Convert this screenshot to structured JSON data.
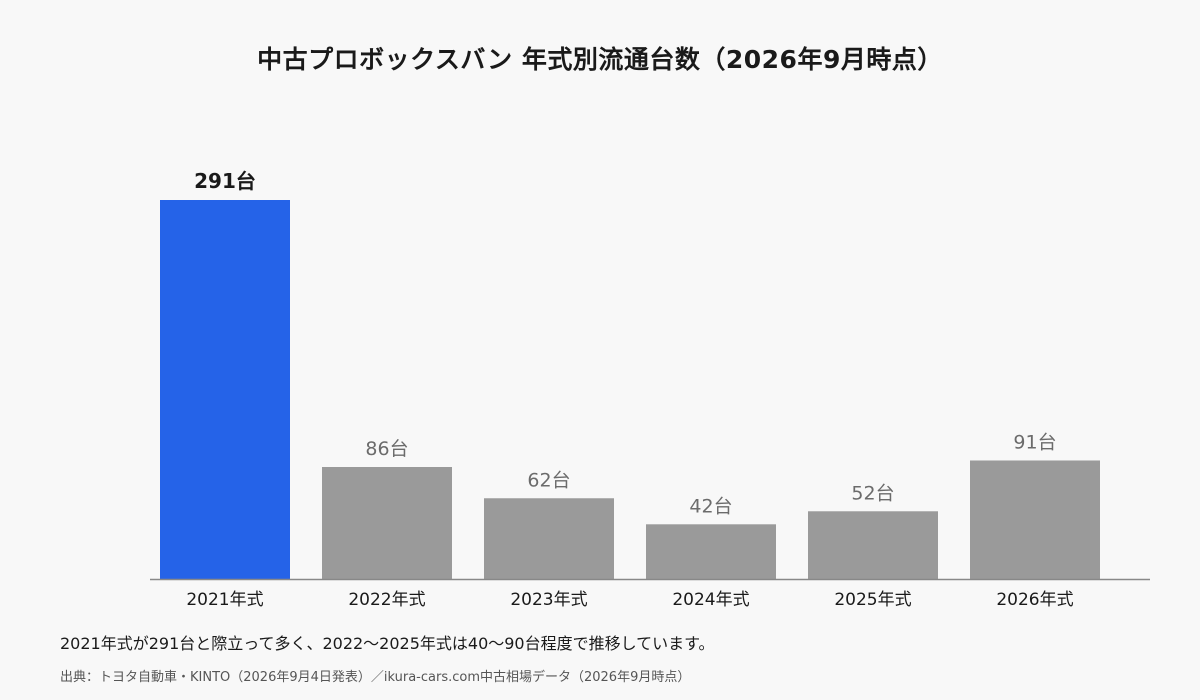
{
  "chart_data": {
    "type": "bar",
    "title": "中古プロボックスバン 年式別流通台数（2026年9月時点）",
    "categories": [
      "2021年式",
      "2022年式",
      "2023年式",
      "2024年式",
      "2025年式",
      "2026年式"
    ],
    "values": [
      291,
      86,
      62,
      42,
      52,
      91
    ],
    "value_labels": [
      "291台",
      "86台",
      "62台",
      "42台",
      "52台",
      "91台"
    ],
    "highlight_index": 0,
    "ylim": [
      0,
      291
    ],
    "grid": false,
    "colors": {
      "highlight": "#2563e8",
      "default": "#9a9a9a",
      "highlight_label": "#1a1a1a",
      "default_label": "#6b6b6b",
      "axis": "#888888"
    }
  },
  "caption": "2021年式が291台と際立って多く、2022〜2025年式は40〜90台程度で推移しています。",
  "source": "出典：トヨタ自動車・KINTO（2026年9月4日発表）／ikura-cars.com中古相場データ（2026年9月時点）"
}
